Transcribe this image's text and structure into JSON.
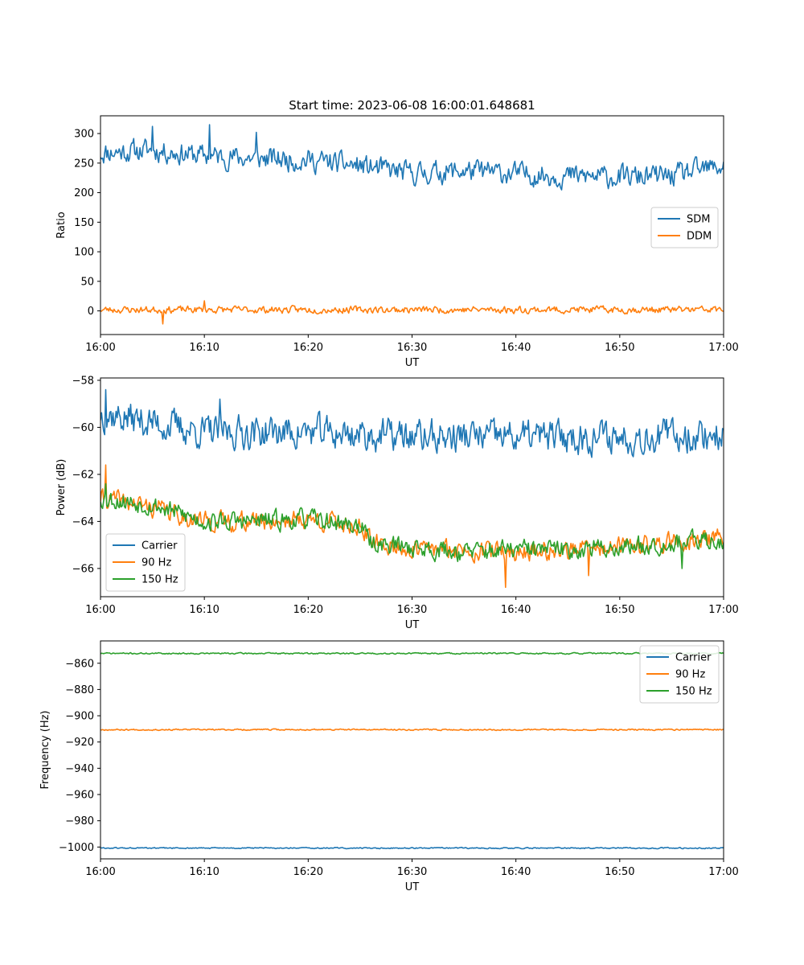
{
  "figure": {
    "title": "Start time: 2023-06-08 16:00:01.648681"
  },
  "colors": {
    "blue": "#1f77b4",
    "orange": "#ff7f0e",
    "green": "#2ca02c"
  },
  "chart_data": [
    {
      "type": "line",
      "title": "Start time: 2023-06-08 16:00:01.648681",
      "xlabel": "UT",
      "ylabel": "Ratio",
      "xlim": [
        "16:00",
        "17:00"
      ],
      "ylim": [
        -40,
        330
      ],
      "x_ticks": [
        "16:00",
        "16:10",
        "16:20",
        "16:30",
        "16:40",
        "16:50",
        "17:00"
      ],
      "y_ticks": [
        0,
        50,
        100,
        150,
        200,
        250,
        300
      ],
      "y_tick_labels": [
        "0",
        "50",
        "100",
        "150",
        "200",
        "250",
        "300"
      ],
      "legend_position": "center-right",
      "series": [
        {
          "name": "SDM",
          "color": "#1f77b4",
          "noise": 16,
          "seed": 11,
          "points": [
            [
              "16:00",
              268
            ],
            [
              "16:05",
              272
            ],
            [
              "16:10",
              262
            ],
            [
              "16:15",
              258
            ],
            [
              "16:20",
              255
            ],
            [
              "16:25",
              245
            ],
            [
              "16:30",
              232
            ],
            [
              "16:35",
              237
            ],
            [
              "16:40",
              232
            ],
            [
              "16:45",
              228
            ],
            [
              "16:50",
              226
            ],
            [
              "16:55",
              228
            ],
            [
              "17:00",
              245
            ]
          ],
          "peaks": [
            [
              "16:05",
              312
            ],
            [
              "16:10.5",
              315
            ],
            [
              "16:15",
              302
            ]
          ]
        },
        {
          "name": "DDM",
          "color": "#ff7f0e",
          "noise": 5,
          "seed": 23,
          "points": [
            [
              "16:00",
              2
            ],
            [
              "16:30",
              2
            ],
            [
              "17:00",
              2
            ]
          ],
          "peaks": [
            [
              "16:06",
              -22
            ],
            [
              "16:10",
              17
            ]
          ]
        }
      ]
    },
    {
      "type": "line",
      "title": "",
      "xlabel": "UT",
      "ylabel": "Power (dB)",
      "xlim": [
        "16:00",
        "17:00"
      ],
      "ylim": [
        -67.2,
        -57.9
      ],
      "x_ticks": [
        "16:00",
        "16:10",
        "16:20",
        "16:30",
        "16:40",
        "16:50",
        "17:00"
      ],
      "y_ticks": [
        -66,
        -64,
        -62,
        -60,
        -58
      ],
      "y_tick_labels": [
        "−66",
        "−64",
        "−62",
        "−60",
        "−58"
      ],
      "legend_position": "lower-left",
      "series": [
        {
          "name": "Carrier",
          "color": "#1f77b4",
          "noise": 0.6,
          "seed": 37,
          "points": [
            [
              "16:00",
              -59.4
            ],
            [
              "16:10",
              -60.2
            ],
            [
              "16:20",
              -60.2
            ],
            [
              "16:30",
              -60.4
            ],
            [
              "16:40",
              -60.4
            ],
            [
              "16:50",
              -60.4
            ],
            [
              "17:00",
              -60.3
            ]
          ],
          "peaks": [
            [
              "16:00.5",
              -58.4
            ],
            [
              "16:11.5",
              -58.8
            ]
          ]
        },
        {
          "name": "90 Hz",
          "color": "#ff7f0e",
          "noise": 0.35,
          "seed": 41,
          "points": [
            [
              "16:00",
              -63.0
            ],
            [
              "16:05",
              -63.4
            ],
            [
              "16:10",
              -64.0
            ],
            [
              "16:15",
              -64.0
            ],
            [
              "16:20",
              -63.9
            ],
            [
              "16:25",
              -64.2
            ],
            [
              "16:26",
              -64.9
            ],
            [
              "16:30",
              -65.2
            ],
            [
              "16:35",
              -65.2
            ],
            [
              "16:40",
              -65.3
            ],
            [
              "16:45",
              -65.2
            ],
            [
              "16:50",
              -65.1
            ],
            [
              "16:55",
              -64.9
            ],
            [
              "17:00",
              -64.7
            ]
          ],
          "peaks": [
            [
              "16:00.5",
              -61.6
            ],
            [
              "16:39",
              -66.8
            ],
            [
              "16:47",
              -66.3
            ]
          ]
        },
        {
          "name": "150 Hz",
          "color": "#2ca02c",
          "noise": 0.35,
          "seed": 53,
          "points": [
            [
              "16:00",
              -63.0
            ],
            [
              "16:05",
              -63.3
            ],
            [
              "16:10",
              -64.0
            ],
            [
              "16:15",
              -64.0
            ],
            [
              "16:20",
              -63.9
            ],
            [
              "16:25",
              -64.2
            ],
            [
              "16:26",
              -64.9
            ],
            [
              "16:30",
              -65.1
            ],
            [
              "16:35",
              -65.3
            ],
            [
              "16:40",
              -65.2
            ],
            [
              "16:45",
              -65.2
            ],
            [
              "16:50",
              -65.1
            ],
            [
              "16:55",
              -64.9
            ],
            [
              "17:00",
              -64.8
            ]
          ],
          "peaks": [
            [
              "16:00.5",
              -62.4
            ],
            [
              "16:56",
              -66.0
            ]
          ]
        }
      ]
    },
    {
      "type": "line",
      "title": "",
      "xlabel": "UT",
      "ylabel": "Frequency (Hz)",
      "xlim": [
        "16:00",
        "17:00"
      ],
      "ylim": [
        -1009,
        -843
      ],
      "x_ticks": [
        "16:00",
        "16:10",
        "16:20",
        "16:30",
        "16:40",
        "16:50",
        "17:00"
      ],
      "y_ticks": [
        -1000,
        -980,
        -960,
        -940,
        -920,
        -900,
        -880,
        -860
      ],
      "y_tick_labels": [
        "−1000",
        "−980",
        "−960",
        "−940",
        "−920",
        "−900",
        "−880",
        "−860"
      ],
      "legend_position": "upper-right",
      "series": [
        {
          "name": "Carrier",
          "color": "#1f77b4",
          "noise": 0.4,
          "seed": 61,
          "points": [
            [
              "16:00",
              -1000.8
            ],
            [
              "17:00",
              -1000.8
            ]
          ],
          "peaks": []
        },
        {
          "name": "90 Hz",
          "color": "#ff7f0e",
          "noise": 0.45,
          "seed": 67,
          "points": [
            [
              "16:00",
              -910.6
            ],
            [
              "17:00",
              -910.6
            ]
          ],
          "peaks": []
        },
        {
          "name": "150 Hz",
          "color": "#2ca02c",
          "noise": 0.45,
          "seed": 71,
          "points": [
            [
              "16:00",
              -852.5
            ],
            [
              "17:00",
              -852.5
            ]
          ],
          "peaks": []
        }
      ]
    }
  ]
}
